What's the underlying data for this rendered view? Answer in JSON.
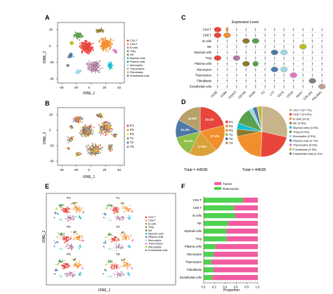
{
  "panels": {
    "a": "A",
    "b": "B",
    "c": "C",
    "d": "D",
    "e": "E",
    "f": "F"
  },
  "cell_types": [
    {
      "name": "CD4 T",
      "color": "#e8453c"
    },
    {
      "name": "CD8 T",
      "color": "#f28e2b"
    },
    {
      "name": "B cells",
      "color": "#b07aa1"
    },
    {
      "name": "NK",
      "color": "#8c7a2e"
    },
    {
      "name": "Treg",
      "color": "#59a14f"
    },
    {
      "name": "Myeloid cells",
      "color": "#17becf"
    },
    {
      "name": "Plasma cells",
      "color": "#4e79a7"
    },
    {
      "name": "Monocytes",
      "color": "#9edae5"
    },
    {
      "name": "Thymocytes",
      "color": "#e377c2"
    },
    {
      "name": "Fibroblasts",
      "color": "#bcbd22"
    },
    {
      "name": "Endothelial cells",
      "color": "#7f7f7f"
    }
  ],
  "legend_a": [
    "CD4 T",
    "CD8 T",
    "B cells",
    "Treg",
    "NK",
    "Myeloid cells",
    "Plasma cells",
    "Monocytes",
    "Thymocytes",
    "Fibroblasts",
    "Endothelial cells"
  ],
  "samples": [
    {
      "name": "P1",
      "color": "#e8453c"
    },
    {
      "name": "P2",
      "color": "#f28e2b"
    },
    {
      "name": "P3",
      "color": "#ffd92f"
    },
    {
      "name": "T1",
      "color": "#59a14f"
    },
    {
      "name": "T2",
      "color": "#4e79a7"
    },
    {
      "name": "T3",
      "color": "#b07aa1"
    }
  ],
  "chart_data": [
    {
      "panel": "A",
      "type": "scatter",
      "xlabel": "tSNE_1",
      "ylabel": "tSNE_2",
      "x_ticks": [
        "-40",
        "-20",
        "0",
        "20",
        "40"
      ],
      "y_ticks": [
        "20",
        "0",
        "-20",
        "-40"
      ],
      "xlim": [
        -45,
        45
      ],
      "ylim": [
        -42,
        32
      ]
    },
    {
      "panel": "B",
      "type": "scatter",
      "xlabel": "tSNE_1",
      "ylabel": "tSNE_2",
      "x_ticks": [
        "-40",
        "-20",
        "0",
        "20",
        "40"
      ],
      "y_ticks": [
        "20",
        "0",
        "-20",
        "-40"
      ],
      "legend": [
        "P1",
        "P2",
        "P3",
        "T1",
        "T2",
        "T3"
      ]
    },
    {
      "panel": "C",
      "type": "heatmap",
      "title": "Expression Level",
      "rows": [
        "CD4 T",
        "CD8 T",
        "B cells",
        "NK",
        "Myeloid cells",
        "Treg",
        "Plasma cells",
        "Monocytes",
        "Thymocytes",
        "Fibroblasts",
        "Endothelial cells"
      ],
      "genes": [
        "CD3E",
        "CD8A",
        "FOXP3",
        "CD79A",
        "IGHM",
        "TG",
        "LYZ",
        "CD14",
        "CD1D",
        "NKG7",
        "COL1A2",
        "PECAM1"
      ]
    },
    {
      "panel": "D",
      "type": "pie",
      "total_label": "Total = 44538",
      "series_left": {
        "labels": [
          "P1",
          "P2",
          "P3",
          "T1",
          "T2",
          "T3"
        ],
        "values": [
          20.2,
          17.2,
          17.8,
          13.1,
          11.4,
          16.5
        ],
        "value_labels": [
          "20.2%",
          "17.2%",
          "17.8%",
          "13.1%",
          "11.4%",
          "16.5%"
        ]
      },
      "series_right": {
        "labels": [
          "CD4 T (27.7%)",
          "CD8 T (21.6%)",
          "B cells (20.4)",
          "NK (4.5%)",
          "Myeloid cells (3.9%)",
          "Treg (10.5%)",
          "Monocytes (2.5%)",
          "Plasma cells (2.7%)",
          "Thymocytes (0.5%)",
          "F ibroblasts (2.3%)",
          "Endothelial cells (0.4%)"
        ],
        "values": [
          27.7,
          21.6,
          20.4,
          4.5,
          3.9,
          10.5,
          2.5,
          2.7,
          0.5,
          2.3,
          0.4
        ]
      }
    },
    {
      "panel": "E",
      "type": "scatter",
      "xlabel": "tSNE_1",
      "ylabel": "tSNE_2",
      "subplots": [
        "P1",
        "T1",
        "P2",
        "T2",
        "P3",
        "T3"
      ],
      "legend": [
        "CD4 T",
        "CD8 T",
        "B cells",
        "Treg",
        "NK",
        "Myeloid cells",
        "Plasma cells",
        "Monocytes",
        "Thymocytes",
        "Fibroblasts",
        "Endothelial cells"
      ]
    },
    {
      "panel": "F",
      "type": "bar",
      "orientation": "horizontal-stacked",
      "xlabel": "Proportion",
      "x_ticks": [
        "0.0",
        "0.2",
        "0.4",
        "0.6",
        "0.8",
        "1.0"
      ],
      "xlim": [
        0,
        1
      ],
      "categories": [
        "CD4 T",
        "CD8 T",
        "B cells",
        "NK",
        "Myeloid cells",
        "Treg",
        "Plasma cells",
        "Monocytes",
        "Thymocytes",
        "Fibroblasts",
        "Endothelial cells"
      ],
      "series": [
        {
          "name": "Para-tumor",
          "color": "#4fd24f",
          "values": [
            0.72,
            0.56,
            0.58,
            0.45,
            0.42,
            0.42,
            0.22,
            0.18,
            0.14,
            0.18,
            0.16
          ]
        },
        {
          "name": "Tumor",
          "color": "#f25ca2",
          "values": [
            0.28,
            0.44,
            0.42,
            0.55,
            0.58,
            0.58,
            0.78,
            0.82,
            0.86,
            0.82,
            0.84
          ]
        }
      ],
      "legend_order": [
        "Tumor",
        "Para-tumor"
      ]
    }
  ]
}
